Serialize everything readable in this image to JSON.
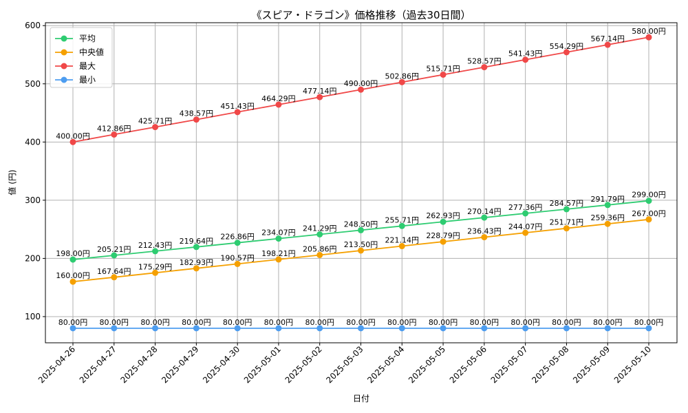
{
  "chart_data": {
    "type": "line",
    "title": "《スピア・ドラゴン》価格推移（過去30日間）",
    "xlabel": "日付",
    "ylabel": "値 (円)",
    "unit_suffix": "円",
    "categories": [
      "2025-04-26",
      "2025-04-27",
      "2025-04-28",
      "2025-04-29",
      "2025-04-30",
      "2025-05-01",
      "2025-05-02",
      "2025-05-03",
      "2025-05-04",
      "2025-05-05",
      "2025-05-06",
      "2025-05-07",
      "2025-05-08",
      "2025-05-09",
      "2025-05-10"
    ],
    "ylim": [
      55,
      605
    ],
    "yticks": [
      100,
      200,
      300,
      400,
      500,
      600
    ],
    "grid": true,
    "legend_position": "top-left",
    "series": [
      {
        "name": "平均",
        "color": "#2ecc71",
        "values": [
          198.0,
          205.21,
          212.43,
          219.64,
          226.86,
          234.07,
          241.29,
          248.5,
          255.71,
          262.93,
          270.14,
          277.36,
          284.57,
          291.79,
          299.0
        ],
        "labels": [
          "198.00円",
          "205.21円",
          "212.43円",
          "219.64円",
          "226.86円",
          "234.07円",
          "241.29円",
          "248.50円",
          "255.71円",
          "262.93円",
          "270.14円",
          "277.36円",
          "284.57円",
          "291.79円",
          "299.00円"
        ]
      },
      {
        "name": "中央値",
        "color": "#f5a000",
        "values": [
          160.0,
          167.64,
          175.29,
          182.93,
          190.57,
          198.21,
          205.86,
          213.5,
          221.14,
          228.79,
          236.43,
          244.07,
          251.71,
          259.36,
          267.0
        ],
        "labels": [
          "160.00円",
          "167.64円",
          "175.29円",
          "182.93円",
          "190.57円",
          "198.21円",
          "205.86円",
          "213.50円",
          "221.14円",
          "228.79円",
          "236.43円",
          "244.07円",
          "251.71円",
          "259.36円",
          "267.00円"
        ]
      },
      {
        "name": "最大",
        "color": "#f04848",
        "values": [
          400.0,
          412.86,
          425.71,
          438.57,
          451.43,
          464.29,
          477.14,
          490.0,
          502.86,
          515.71,
          528.57,
          541.43,
          554.29,
          567.14,
          580.0
        ],
        "labels": [
          "400.00円",
          "412.86円",
          "425.71円",
          "438.57円",
          "451.43円",
          "464.29円",
          "477.14円",
          "490.00円",
          "502.86円",
          "515.71円",
          "528.57円",
          "541.43円",
          "554.29円",
          "567.14円",
          "580.00円"
        ]
      },
      {
        "name": "最小",
        "color": "#4d9df0",
        "values": [
          80.0,
          80.0,
          80.0,
          80.0,
          80.0,
          80.0,
          80.0,
          80.0,
          80.0,
          80.0,
          80.0,
          80.0,
          80.0,
          80.0,
          80.0
        ],
        "labels": [
          "80.00円",
          "80.00円",
          "80.00円",
          "80.00円",
          "80.00円",
          "80.00円",
          "80.00円",
          "80.00円",
          "80.00円",
          "80.00円",
          "80.00円",
          "80.00円",
          "80.00円",
          "80.00円",
          "80.00円"
        ]
      }
    ]
  }
}
